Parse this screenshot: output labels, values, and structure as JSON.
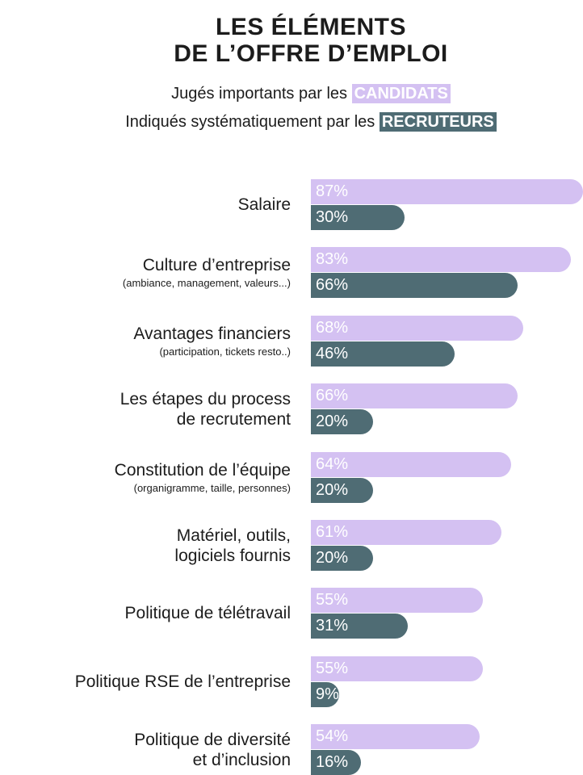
{
  "header": {
    "title_line1": "LES ÉLÉMENTS",
    "title_line2": "DE L’OFFRE D’EMPLOI",
    "legend_candidats_prefix": "Jugés importants par les",
    "legend_candidats_tag": "CANDIDATS",
    "legend_recruteurs_prefix": "Indiqués systématiquement par les",
    "legend_recruteurs_tag": "RECRUTEURS"
  },
  "colors": {
    "candidats": "#d4c1f2",
    "recruteurs": "#4f6c74"
  },
  "chart_data": {
    "type": "bar",
    "orientation": "horizontal",
    "categories": [
      "Salaire",
      "Culture d’entreprise",
      "Avantages financiers",
      "Les étapes du process de recrutement",
      "Constitution de l’équipe",
      "Matériel, outils, logiciels fournis",
      "Politique de télétravail",
      "Politique RSE de l’entreprise",
      "Politique de diversité et d’inclusion"
    ],
    "series": [
      {
        "name": "CANDIDATS",
        "values": [
          87,
          83,
          68,
          66,
          64,
          61,
          55,
          55,
          54
        ]
      },
      {
        "name": "RECRUTEURS",
        "values": [
          30,
          66,
          46,
          20,
          20,
          20,
          31,
          9,
          16
        ]
      }
    ],
    "value_suffix": "%",
    "xlim": [
      0,
      100
    ],
    "rows": [
      {
        "label_lines": [
          "Salaire"
        ],
        "sublabel": "",
        "cand": "87%",
        "recr": "30%"
      },
      {
        "label_lines": [
          "Culture d’entreprise"
        ],
        "sublabel": "(ambiance, management, valeurs...)",
        "cand": "83%",
        "recr": "66%"
      },
      {
        "label_lines": [
          "Avantages financiers"
        ],
        "sublabel": "(participation, tickets resto..)",
        "cand": "68%",
        "recr": "46%"
      },
      {
        "label_lines": [
          "Les étapes du process",
          "de recrutement"
        ],
        "sublabel": "",
        "cand": "66%",
        "recr": "20%"
      },
      {
        "label_lines": [
          "Constitution de l’équipe"
        ],
        "sublabel": "(organigramme, taille, personnes)",
        "cand": "64%",
        "recr": "20%"
      },
      {
        "label_lines": [
          "Matériel, outils,",
          "logiciels fournis"
        ],
        "sublabel": "",
        "cand": "61%",
        "recr": "20%"
      },
      {
        "label_lines": [
          "Politique de télétravail"
        ],
        "sublabel": "",
        "cand": "55%",
        "recr": "31%"
      },
      {
        "label_lines": [
          "Politique RSE de l’entreprise"
        ],
        "sublabel": "",
        "cand": "55%",
        "recr": "9%"
      },
      {
        "label_lines": [
          "Politique de diversité",
          "et d’inclusion"
        ],
        "sublabel": "",
        "cand": "54%",
        "recr": "16%"
      }
    ]
  }
}
